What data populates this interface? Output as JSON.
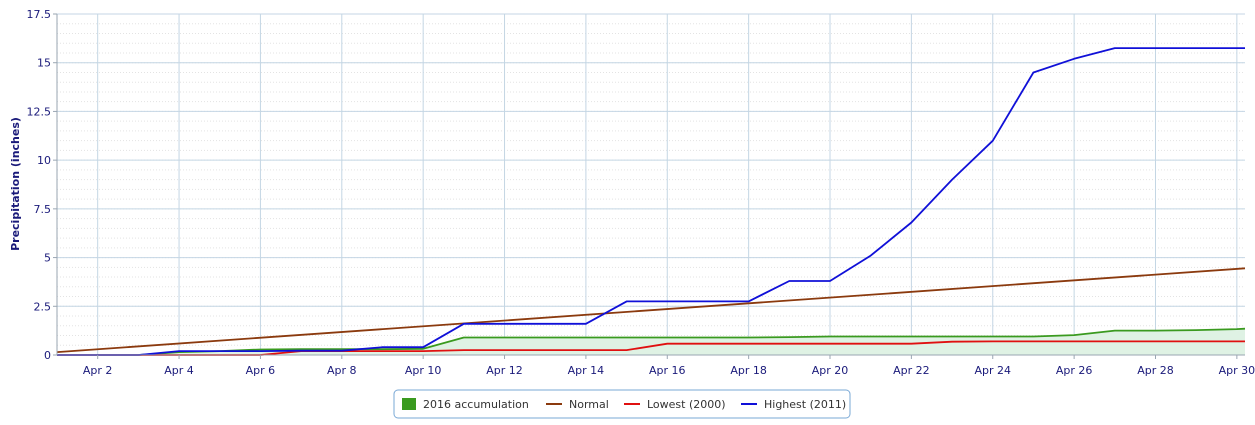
{
  "chart_data": {
    "type": "line",
    "ylabel": "Precipitation (inches)",
    "xlim": [
      1,
      30.2
    ],
    "ylim": [
      0,
      17.5
    ],
    "y_ticks": [
      0,
      2.5,
      5,
      7.5,
      10,
      12.5,
      15,
      17.5
    ],
    "y_tick_labels": [
      "0",
      "2.5",
      "5",
      "7.5",
      "10",
      "12.5",
      "15",
      "17.5"
    ],
    "x_ticks": [
      2,
      4,
      6,
      8,
      10,
      12,
      14,
      16,
      18,
      20,
      22,
      24,
      26,
      28,
      30
    ],
    "x_tick_labels": [
      "Apr 2",
      "Apr 4",
      "Apr 6",
      "Apr 8",
      "Apr 10",
      "Apr 12",
      "Apr 14",
      "Apr 16",
      "Apr 18",
      "Apr 20",
      "Apr 22",
      "Apr 24",
      "Apr 26",
      "Apr 28",
      "Apr 30"
    ],
    "grid": true,
    "legend_position": "bottom-center",
    "series": [
      {
        "name": "2016 accumulation",
        "kind": "area",
        "color": "#3a9a1f",
        "fill": "#dff2e4",
        "x": [
          1,
          2,
          3,
          4,
          5,
          6,
          7,
          8,
          9,
          10,
          11,
          12,
          13,
          14,
          15,
          16,
          17,
          18,
          19,
          20,
          21,
          22,
          23,
          24,
          25,
          26,
          27,
          28,
          29,
          30,
          30.2
        ],
        "y": [
          0,
          0,
          0,
          0.15,
          0.2,
          0.28,
          0.3,
          0.3,
          0.3,
          0.32,
          0.9,
          0.9,
          0.9,
          0.9,
          0.9,
          0.9,
          0.9,
          0.9,
          0.92,
          0.95,
          0.95,
          0.95,
          0.95,
          0.95,
          0.95,
          1.02,
          1.25,
          1.25,
          1.28,
          1.33,
          1.35
        ]
      },
      {
        "name": "Normal",
        "kind": "line",
        "color": "#8b3a0e",
        "x": [
          1,
          30.2
        ],
        "y": [
          0.15,
          4.45
        ]
      },
      {
        "name": "Lowest (2000)",
        "kind": "line",
        "color": "#e01010",
        "x": [
          1,
          2,
          3,
          4,
          5,
          6,
          7,
          8,
          9,
          10,
          11,
          12,
          13,
          14,
          15,
          16,
          17,
          18,
          19,
          20,
          21,
          22,
          23,
          24,
          25,
          26,
          27,
          28,
          29,
          30,
          30.2
        ],
        "y": [
          0,
          0,
          0,
          0,
          0,
          0,
          0.2,
          0.2,
          0.2,
          0.2,
          0.25,
          0.25,
          0.25,
          0.25,
          0.25,
          0.58,
          0.58,
          0.58,
          0.58,
          0.58,
          0.58,
          0.58,
          0.68,
          0.7,
          0.7,
          0.7,
          0.7,
          0.7,
          0.7,
          0.7,
          0.7
        ]
      },
      {
        "name": "Highest (2011)",
        "kind": "line",
        "color": "#1010d8",
        "x": [
          1,
          2,
          3,
          4,
          5,
          6,
          7,
          8,
          9,
          10,
          11,
          12,
          13,
          14,
          15,
          16,
          17,
          18,
          19,
          20,
          21,
          22,
          23,
          24,
          25,
          26,
          27,
          28,
          29,
          30,
          30.2
        ],
        "y": [
          0,
          0,
          0,
          0.2,
          0.2,
          0.2,
          0.22,
          0.22,
          0.4,
          0.4,
          1.6,
          1.6,
          1.6,
          1.6,
          2.75,
          2.75,
          2.75,
          2.75,
          3.8,
          3.8,
          5.1,
          6.8,
          9.0,
          11.0,
          14.5,
          15.2,
          15.75,
          15.75,
          15.75,
          15.75,
          15.75
        ]
      }
    ]
  }
}
